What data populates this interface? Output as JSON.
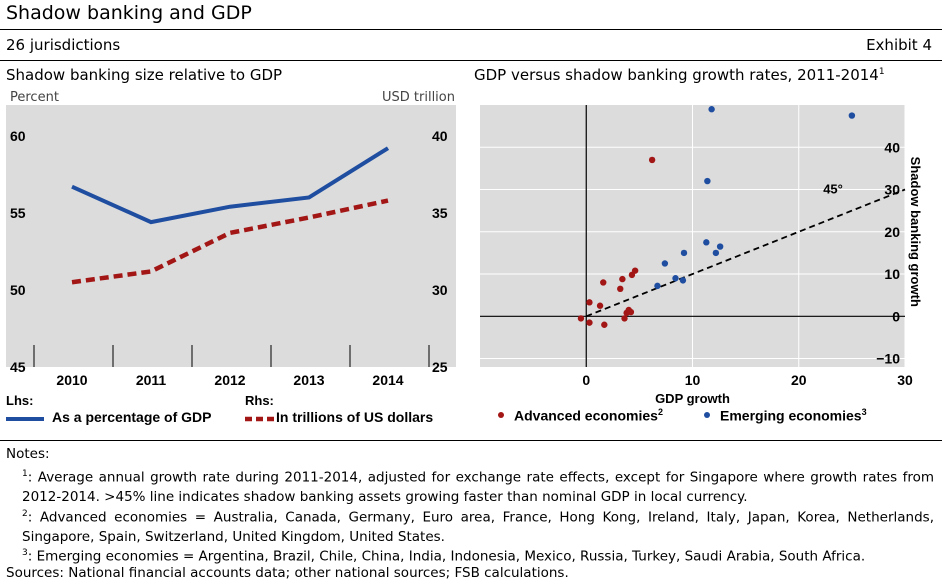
{
  "header": {
    "title": "Shadow banking and GDP",
    "subtitle": "26 jurisdictions",
    "exhibit": "Exhibit 4"
  },
  "left_panel": {
    "title": "Shadow banking size relative to GDP",
    "lhs_unit": "Percent",
    "rhs_unit": "USD trillion",
    "legend": {
      "lhs_heading": "Lhs:",
      "lhs_item": "As a percentage of GDP",
      "rhs_heading": "Rhs:",
      "rhs_item": "In trillions of US dollars"
    }
  },
  "right_panel": {
    "title": "GDP versus shadow banking growth rates, 2011-2014",
    "title_note": "1",
    "line_label": "45°",
    "legend": {
      "advanced": "Advanced economies",
      "advanced_note": "2",
      "emerging": "Emerging economies",
      "emerging_note": "3"
    }
  },
  "colors": {
    "panel_bg": "#dcdcdc",
    "lhs_line": "#1f4ea1",
    "rhs_line": "#a31616",
    "advanced": "#a31616",
    "emerging": "#1f4ea1"
  },
  "chart_data": [
    {
      "type": "line",
      "title": "Shadow banking size relative to GDP",
      "x": [
        "2010",
        "2011",
        "2012",
        "2013",
        "2014"
      ],
      "ylabel_left": "Percent",
      "ylabel_right": "USD trillion",
      "ylim_left": [
        45,
        62
      ],
      "ylim_right": [
        25,
        42
      ],
      "yticks_left": [
        45,
        50,
        55,
        60
      ],
      "yticks_right": [
        25,
        30,
        35,
        40
      ],
      "grid": false,
      "series": [
        {
          "name": "As a percentage of GDP",
          "axis": "left",
          "style": "solid",
          "values": [
            56.7,
            54.4,
            55.4,
            56.0,
            59.2
          ]
        },
        {
          "name": "In trillions of US dollars",
          "axis": "right",
          "style": "dashed",
          "values": [
            30.5,
            31.2,
            33.7,
            34.7,
            35.8
          ]
        }
      ]
    },
    {
      "type": "scatter",
      "title": "GDP versus shadow banking growth rates, 2011-2014",
      "xlabel": "GDP growth",
      "ylabel": "Shadow banking growth",
      "xlim": [
        -10,
        30
      ],
      "ylim": [
        -12,
        50
      ],
      "xticks": [
        0,
        10,
        20,
        30
      ],
      "yticks": [
        -10,
        0,
        10,
        20,
        30,
        40
      ],
      "reference_line": {
        "label": "45°",
        "slope": 1
      },
      "series": [
        {
          "name": "Advanced economies",
          "points": [
            [
              -0.5,
              -0.5
            ],
            [
              0.3,
              3.3
            ],
            [
              0.3,
              -1.5
            ],
            [
              1.3,
              2.5
            ],
            [
              1.6,
              8.0
            ],
            [
              1.7,
              -2.0
            ],
            [
              3.2,
              6.5
            ],
            [
              3.4,
              8.8
            ],
            [
              3.8,
              0.8
            ],
            [
              3.6,
              -0.5
            ],
            [
              4.0,
              1.5
            ],
            [
              4.2,
              1.0
            ],
            [
              4.3,
              9.8
            ],
            [
              4.6,
              10.8
            ],
            [
              6.2,
              37.0
            ]
          ]
        },
        {
          "name": "Emerging economies",
          "points": [
            [
              6.7,
              7.2
            ],
            [
              7.4,
              12.5
            ],
            [
              8.4,
              9.0
            ],
            [
              9.1,
              8.5
            ],
            [
              9.2,
              15.0
            ],
            [
              11.3,
              17.5
            ],
            [
              11.4,
              32.0
            ],
            [
              11.8,
              49.0
            ],
            [
              12.2,
              15.0
            ],
            [
              12.6,
              16.5
            ],
            [
              25.0,
              47.5
            ]
          ]
        }
      ]
    }
  ],
  "notes": {
    "heading": "Notes:",
    "items": [
      {
        "mark": "1",
        "text": "Average annual growth rate during 2011-2014, adjusted for exchange rate effects, except for Singapore where growth rates from 2012-2014. >45% line indicates shadow banking assets growing faster than nominal GDP in local currency."
      },
      {
        "mark": "2",
        "text": "Advanced economies = Australia, Canada, Germany, Euro area, France, Hong Kong, Ireland, Italy, Japan, Korea, Netherlands, Singapore, Spain, Switzerland, United Kingdom, United States."
      },
      {
        "mark": "3",
        "text": "Emerging economies = Argentina, Brazil, Chile, China, India, Indonesia, Mexico, Russia, Turkey, Saudi Arabia, South Africa."
      }
    ],
    "sources": "Sources: National financial accounts data; other national sources; FSB calculations."
  }
}
